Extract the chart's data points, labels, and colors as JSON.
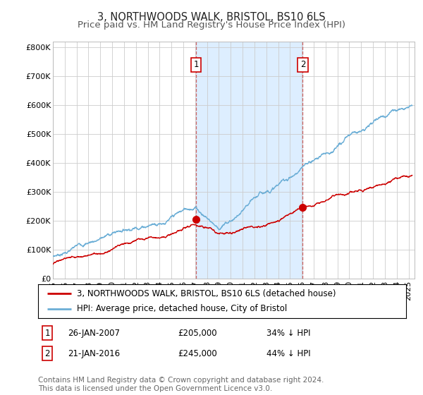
{
  "title": "3, NORTHWOODS WALK, BRISTOL, BS10 6LS",
  "subtitle": "Price paid vs. HM Land Registry's House Price Index (HPI)",
  "ylim": [
    0,
    820000
  ],
  "yticks": [
    0,
    100000,
    200000,
    300000,
    400000,
    500000,
    600000,
    700000,
    800000
  ],
  "ytick_labels": [
    "£0",
    "£100K",
    "£200K",
    "£300K",
    "£400K",
    "£500K",
    "£600K",
    "£700K",
    "£800K"
  ],
  "hpi_color": "#6baed6",
  "price_color": "#cc0000",
  "shading_color": "#ddeeff",
  "dashed_color": "#cc6666",
  "grid_color": "#cccccc",
  "sale1_date_num": 2007.07,
  "sale1_price": 205000,
  "sale1_label": "1",
  "sale2_date_num": 2016.07,
  "sale2_price": 245000,
  "sale2_label": "2",
  "legend_entry1": "3, NORTHWOODS WALK, BRISTOL, BS10 6LS (detached house)",
  "legend_entry2": "HPI: Average price, detached house, City of Bristol",
  "table_row1": [
    "1",
    "26-JAN-2007",
    "£205,000",
    "34% ↓ HPI"
  ],
  "table_row2": [
    "2",
    "21-JAN-2016",
    "£245,000",
    "44% ↓ HPI"
  ],
  "footnote": "Contains HM Land Registry data © Crown copyright and database right 2024.\nThis data is licensed under the Open Government Licence v3.0.",
  "title_fontsize": 10.5,
  "subtitle_fontsize": 9.5,
  "tick_fontsize": 8,
  "legend_fontsize": 8.5,
  "table_fontsize": 8.5,
  "footnote_fontsize": 7.5
}
